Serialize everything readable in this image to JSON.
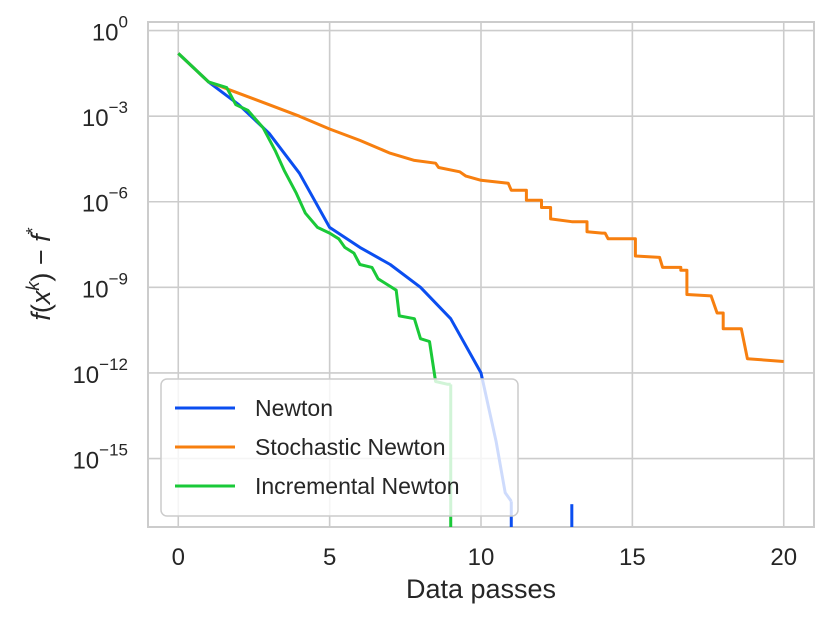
{
  "chart_data": {
    "type": "line",
    "title": "",
    "xlabel": "Data passes",
    "ylabel": "f(x^k) − f*",
    "ylabel_parts": {
      "f1": "f",
      "open": "(",
      "x": "x",
      "k": "k",
      "close": ") − ",
      "f2": "f",
      "star": "*"
    },
    "yscale": "log",
    "xlim": [
      -1,
      21
    ],
    "ylim_log10": [
      -17.4,
      0.3
    ],
    "grid": true,
    "x_ticks": [
      0,
      5,
      10,
      15,
      20
    ],
    "x_tick_labels": [
      "0",
      "5",
      "10",
      "15",
      "20"
    ],
    "y_ticks_log10": [
      0,
      -3,
      -6,
      -9,
      -12,
      -15
    ],
    "y_tick_labels": [
      {
        "base": "10",
        "exp": "0"
      },
      {
        "base": "10",
        "exp": "−3"
      },
      {
        "base": "10",
        "exp": "−6"
      },
      {
        "base": "10",
        "exp": "−9"
      },
      {
        "base": "10",
        "exp": "−12"
      },
      {
        "base": "10",
        "exp": "−15"
      }
    ],
    "legend_position": "lower-left",
    "series": [
      {
        "name": "Newton",
        "color": "#0b4ef0",
        "log10_points": [
          [
            0,
            -0.8
          ],
          [
            1,
            -1.8
          ],
          [
            2,
            -2.6
          ],
          [
            3,
            -3.6
          ],
          [
            4,
            -5.0
          ],
          [
            5,
            -6.9
          ],
          [
            6,
            -7.6
          ],
          [
            7,
            -8.2
          ],
          [
            8,
            -9.0
          ],
          [
            9,
            -10.1
          ],
          [
            10,
            -12.0
          ],
          [
            10.5,
            -14.4
          ],
          [
            10.8,
            -16.2
          ],
          [
            11.0,
            -16.5
          ]
        ],
        "drops": [
          11,
          13
        ]
      },
      {
        "name": "Stochastic Newton",
        "color": "#f77f0f",
        "log10_points": [
          [
            0,
            -0.8
          ],
          [
            1,
            -1.8
          ],
          [
            2,
            -2.2
          ],
          [
            3,
            -2.6
          ],
          [
            4,
            -3.0
          ],
          [
            5,
            -3.45
          ],
          [
            6,
            -3.85
          ],
          [
            7,
            -4.3
          ],
          [
            7.8,
            -4.55
          ],
          [
            8.5,
            -4.65
          ],
          [
            8.6,
            -4.8
          ],
          [
            9.3,
            -4.95
          ],
          [
            9.5,
            -5.1
          ],
          [
            10.0,
            -5.25
          ],
          [
            10.9,
            -5.35
          ],
          [
            11.0,
            -5.6
          ],
          [
            11.5,
            -5.6
          ],
          [
            11.5,
            -5.95
          ],
          [
            12.0,
            -5.95
          ],
          [
            12.0,
            -6.2
          ],
          [
            12.3,
            -6.2
          ],
          [
            12.3,
            -6.6
          ],
          [
            13.0,
            -6.7
          ],
          [
            13.5,
            -6.7
          ],
          [
            13.5,
            -7.05
          ],
          [
            14.0,
            -7.1
          ],
          [
            14.1,
            -7.1
          ],
          [
            14.2,
            -7.3
          ],
          [
            15.1,
            -7.3
          ],
          [
            15.1,
            -7.9
          ],
          [
            15.9,
            -7.95
          ],
          [
            16.0,
            -8.3
          ],
          [
            16.6,
            -8.3
          ],
          [
            16.6,
            -8.4
          ],
          [
            16.8,
            -8.4
          ],
          [
            16.8,
            -9.25
          ],
          [
            17.6,
            -9.3
          ],
          [
            17.8,
            -9.9
          ],
          [
            18.0,
            -9.9
          ],
          [
            18.0,
            -10.45
          ],
          [
            18.6,
            -10.45
          ],
          [
            18.8,
            -11.5
          ],
          [
            20.0,
            -11.6
          ]
        ]
      },
      {
        "name": "Incremental Newton",
        "color": "#1ac938",
        "log10_points": [
          [
            0,
            -0.8
          ],
          [
            1,
            -1.8
          ],
          [
            1.6,
            -2.0
          ],
          [
            1.9,
            -2.6
          ],
          [
            2.3,
            -2.8
          ],
          [
            2.8,
            -3.4
          ],
          [
            3.2,
            -4.2
          ],
          [
            3.5,
            -4.9
          ],
          [
            3.9,
            -5.7
          ],
          [
            4.2,
            -6.4
          ],
          [
            4.6,
            -6.9
          ],
          [
            5.0,
            -7.1
          ],
          [
            5.3,
            -7.3
          ],
          [
            5.5,
            -7.6
          ],
          [
            5.8,
            -7.8
          ],
          [
            6.0,
            -8.2
          ],
          [
            6.4,
            -8.3
          ],
          [
            6.6,
            -8.7
          ],
          [
            6.9,
            -8.9
          ],
          [
            7.2,
            -9.1
          ],
          [
            7.3,
            -10.0
          ],
          [
            7.8,
            -10.1
          ],
          [
            8.0,
            -10.8
          ],
          [
            8.3,
            -10.9
          ],
          [
            8.5,
            -12.3
          ],
          [
            8.9,
            -12.4
          ],
          [
            9.0,
            -12.4
          ]
        ],
        "drops": [
          9
        ]
      }
    ]
  }
}
